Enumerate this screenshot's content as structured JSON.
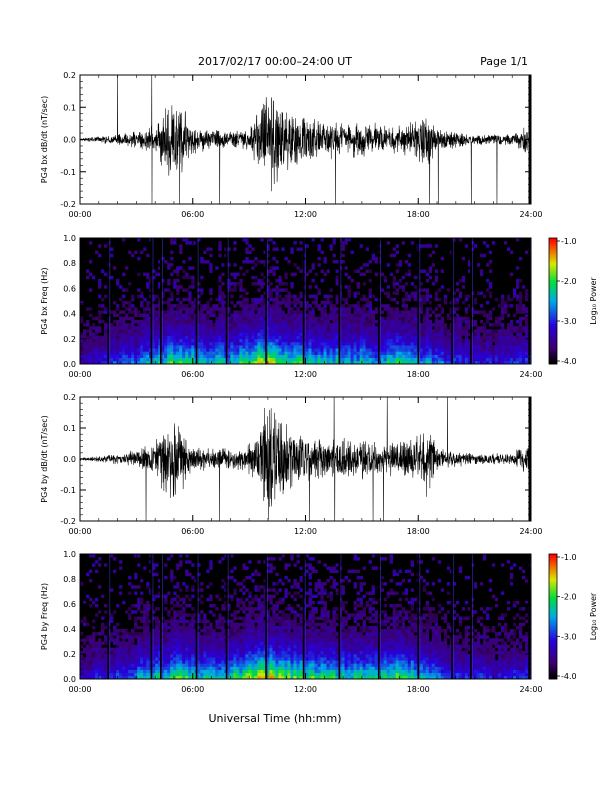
{
  "header": {
    "title": "2017/02/17  00:00–24:00 UT",
    "page": "Page 1/1"
  },
  "xlabel": "Universal Time (hh:mm)",
  "chart_data": [
    {
      "type": "line",
      "ylabel": "PG4 bx dB/dt (nT/sec)",
      "xlim": [
        0,
        24
      ],
      "ylim": [
        -0.2,
        0.2
      ],
      "x_ticks": [
        "00:00",
        "06:00",
        "12:00",
        "18:00",
        "24:00"
      ],
      "y_ticks": [
        "0.2",
        "0.1",
        "0.0",
        "-0.1",
        "-0.2"
      ],
      "x_hours": [
        0,
        1,
        2,
        3,
        4,
        4.5,
        5,
        5.5,
        6,
        7,
        8,
        9,
        9.5,
        10,
        10.5,
        11,
        12,
        13,
        14,
        15,
        16,
        17,
        18,
        18.5,
        19,
        20,
        21,
        22,
        23,
        23.8,
        24
      ],
      "amplitude": [
        0.005,
        0.01,
        0.02,
        0.03,
        0.05,
        0.12,
        0.15,
        0.1,
        0.05,
        0.03,
        0.03,
        0.04,
        0.1,
        0.2,
        0.15,
        0.1,
        0.08,
        0.07,
        0.06,
        0.06,
        0.05,
        0.05,
        0.08,
        0.1,
        0.04,
        0.03,
        0.02,
        0.02,
        0.02,
        0.05,
        0.02
      ]
    },
    {
      "type": "heatmap",
      "ylabel": "PG4 bx Freq (Hz)",
      "xlim": [
        0,
        24
      ],
      "ylim": [
        0,
        1
      ],
      "x_ticks": [
        "00:00",
        "06:00",
        "12:00",
        "18:00",
        "24:00"
      ],
      "y_ticks": [
        "1.0",
        "0.8",
        "0.6",
        "0.4",
        "0.2",
        "0.0"
      ],
      "colorbar_label": "Log₁₀ Power",
      "colorbar_ticks": [
        "-1.0",
        "-2.0",
        "-3.0",
        "-4.0"
      ],
      "crange": [
        -4,
        -1
      ],
      "gap_lines_hours": [
        1.5,
        3.8,
        4.3,
        6.2,
        7.8,
        9.9,
        11.9,
        13.8,
        15.9,
        18.0,
        19.8,
        20.8,
        23.9
      ],
      "activity_hours": [
        0,
        2,
        4,
        5,
        6,
        8,
        9.5,
        10,
        11,
        12,
        14,
        16,
        17,
        18,
        19,
        20,
        22,
        24
      ],
      "activity": [
        0.2,
        0.3,
        0.45,
        0.55,
        0.5,
        0.45,
        0.6,
        0.7,
        0.55,
        0.5,
        0.45,
        0.45,
        0.5,
        0.45,
        0.35,
        0.3,
        0.25,
        0.3
      ]
    },
    {
      "type": "line",
      "ylabel": "PG4 by dB/dt (nT/sec)",
      "xlim": [
        0,
        24
      ],
      "ylim": [
        -0.2,
        0.2
      ],
      "x_ticks": [
        "00:00",
        "06:00",
        "12:00",
        "18:00",
        "24:00"
      ],
      "y_ticks": [
        "0.2",
        "0.1",
        "0.0",
        "-0.1",
        "-0.2"
      ],
      "x_hours": [
        0,
        1,
        2,
        3,
        4,
        4.5,
        5,
        5.5,
        6,
        7,
        8,
        9,
        9.5,
        10,
        10.5,
        11,
        12,
        13,
        14,
        15,
        16,
        17,
        18,
        18.5,
        19,
        20,
        21,
        22,
        23,
        23.8,
        24
      ],
      "amplitude": [
        0.005,
        0.01,
        0.02,
        0.03,
        0.06,
        0.13,
        0.16,
        0.1,
        0.05,
        0.04,
        0.04,
        0.05,
        0.12,
        0.22,
        0.16,
        0.12,
        0.09,
        0.08,
        0.07,
        0.07,
        0.06,
        0.06,
        0.1,
        0.13,
        0.04,
        0.03,
        0.02,
        0.02,
        0.02,
        0.06,
        0.02
      ]
    },
    {
      "type": "heatmap",
      "ylabel": "PG4 by Freq (Hz)",
      "xlim": [
        0,
        24
      ],
      "ylim": [
        0,
        1
      ],
      "x_ticks": [
        "00:00",
        "06:00",
        "12:00",
        "18:00",
        "24:00"
      ],
      "y_ticks": [
        "1.0",
        "0.8",
        "0.6",
        "0.4",
        "0.2",
        "0.0"
      ],
      "colorbar_label": "Log₁₀ Power",
      "colorbar_ticks": [
        "-1.0",
        "-2.0",
        "-3.0",
        "-4.0"
      ],
      "crange": [
        -4,
        -1
      ],
      "gap_lines_hours": [
        1.5,
        3.8,
        4.3,
        6.2,
        7.8,
        9.9,
        11.9,
        13.8,
        15.9,
        18.0,
        19.8,
        20.8,
        23.9
      ],
      "activity_hours": [
        0,
        2,
        4,
        5,
        6,
        8,
        9.5,
        10,
        11,
        12,
        14,
        16,
        17,
        18,
        19,
        20,
        22,
        24
      ],
      "activity": [
        0.22,
        0.3,
        0.5,
        0.55,
        0.5,
        0.5,
        0.65,
        0.72,
        0.6,
        0.55,
        0.5,
        0.5,
        0.55,
        0.5,
        0.4,
        0.32,
        0.25,
        0.3
      ]
    }
  ]
}
